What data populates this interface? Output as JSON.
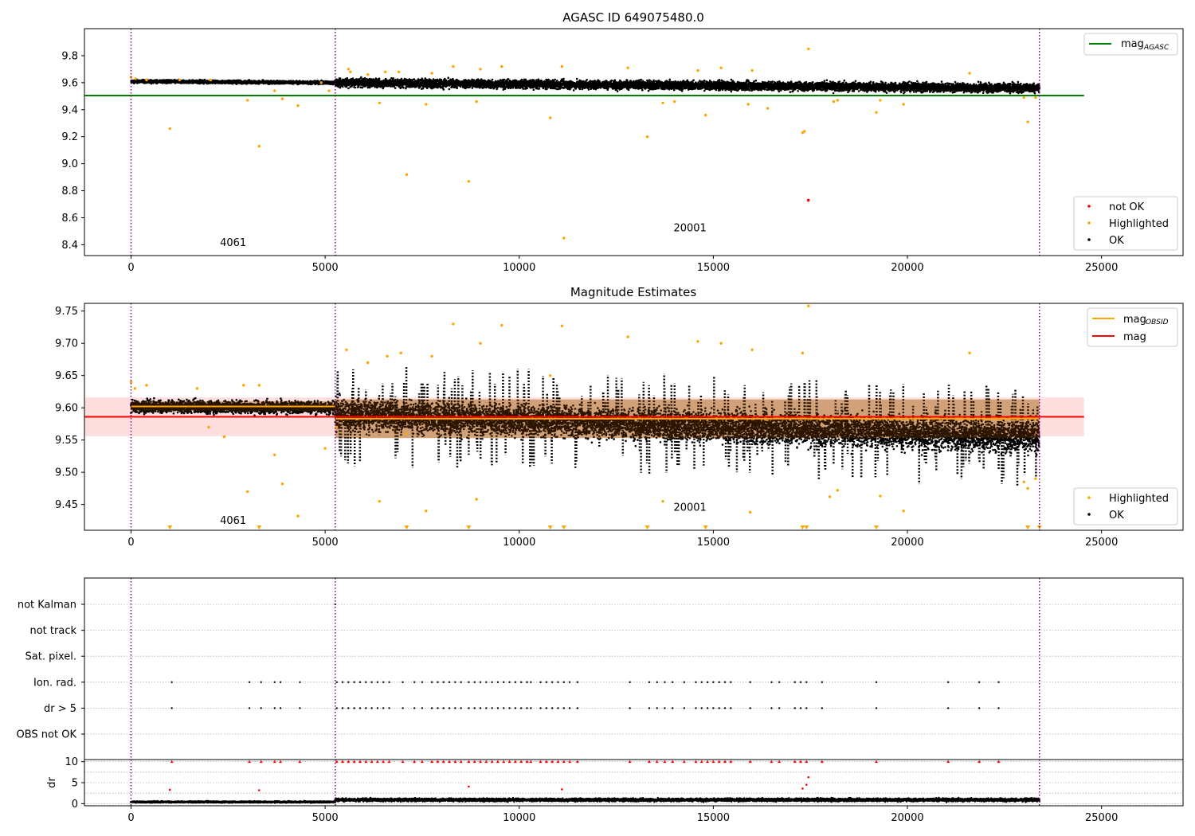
{
  "figure": {
    "background": "#ffffff"
  },
  "colors": {
    "ok": "#000000",
    "highlighted": "#ffa500",
    "not_ok": "#ff0000",
    "mag_agasc_line": "#008000",
    "mag_obsid_line": "#ffa500",
    "mag_line": "#ff0000",
    "obs_boundary": "#800080",
    "obsid_band": "#ffd8b0",
    "mag_band": "#ffd0d0",
    "flag_grid": "#b0b0b0"
  },
  "chart_data": [
    {
      "id": "agasc_panel",
      "type": "scatter",
      "title": "AGASC ID 649075480.0",
      "xlim": [
        -1200,
        27100
      ],
      "ylim": [
        8.32,
        10.0
      ],
      "xticks": [
        0,
        5000,
        10000,
        15000,
        20000,
        25000
      ],
      "yticks": [
        8.4,
        8.6,
        8.8,
        9.0,
        9.2,
        9.4,
        9.6,
        9.8
      ],
      "ytick_labels": [
        "8.4",
        "8.6",
        "8.8",
        "9.0",
        "9.2",
        "9.4",
        "9.6",
        "9.8"
      ],
      "legend_line": {
        "label": "mag",
        "subscript": "AGASC",
        "placement": "upper right"
      },
      "legend_points": {
        "placement": "lower right",
        "entries": [
          "not OK",
          "Highlighted",
          "OK"
        ]
      },
      "mag_agasc": {
        "value": 9.505,
        "x_range": [
          -1200,
          24550
        ]
      },
      "obs_boundaries": [
        0,
        5260,
        23400
      ],
      "obs_labels": [
        {
          "text": "4061",
          "x": 2630,
          "y": 8.39
        },
        {
          "text": "20001",
          "x": 14400,
          "y": 8.5
        }
      ],
      "ok_band": {
        "segments": [
          {
            "x_start": 0,
            "x_end": 5260,
            "center_start": 9.61,
            "center_end": 9.6,
            "spread": 0.022
          },
          {
            "x_start": 5260,
            "x_end": 23400,
            "center_start": 9.6,
            "center_end": 9.56,
            "spread": 0.062
          }
        ]
      },
      "highlighted_points": [
        [
          0,
          9.64
        ],
        [
          120,
          9.63
        ],
        [
          400,
          9.62
        ],
        [
          1000,
          9.26
        ],
        [
          1250,
          9.62
        ],
        [
          2050,
          9.62
        ],
        [
          3000,
          9.47
        ],
        [
          3300,
          9.13
        ],
        [
          3700,
          9.54
        ],
        [
          3900,
          9.48
        ],
        [
          4300,
          9.43
        ],
        [
          4900,
          9.6
        ],
        [
          5100,
          9.54
        ],
        [
          5600,
          9.7
        ],
        [
          5650,
          9.68
        ],
        [
          6100,
          9.66
        ],
        [
          6400,
          9.45
        ],
        [
          6550,
          9.68
        ],
        [
          6900,
          9.68
        ],
        [
          7100,
          8.92
        ],
        [
          7600,
          9.44
        ],
        [
          7750,
          9.67
        ],
        [
          8300,
          9.72
        ],
        [
          8700,
          8.87
        ],
        [
          8900,
          9.46
        ],
        [
          9000,
          9.7
        ],
        [
          9550,
          9.72
        ],
        [
          10800,
          9.34
        ],
        [
          11100,
          9.72
        ],
        [
          12800,
          9.71
        ],
        [
          13300,
          9.2
        ],
        [
          13700,
          9.45
        ],
        [
          14000,
          9.46
        ],
        [
          14600,
          9.69
        ],
        [
          14800,
          9.36
        ],
        [
          15200,
          9.71
        ],
        [
          15900,
          9.44
        ],
        [
          16000,
          9.69
        ],
        [
          16400,
          9.41
        ],
        [
          17300,
          9.23
        ],
        [
          17350,
          9.24
        ],
        [
          17450,
          9.85
        ],
        [
          18100,
          9.46
        ],
        [
          18200,
          9.47
        ],
        [
          19200,
          9.38
        ],
        [
          19300,
          9.47
        ],
        [
          19900,
          9.44
        ],
        [
          21600,
          9.67
        ],
        [
          23000,
          9.49
        ],
        [
          23100,
          9.31
        ],
        [
          23300,
          9.49
        ],
        [
          11150,
          8.45
        ]
      ],
      "not_ok_points": [
        [
          17450,
          8.73
        ]
      ]
    },
    {
      "id": "magnitude_panel",
      "type": "scatter",
      "title": "Magnitude Estimates",
      "xlim": [
        -1200,
        27100
      ],
      "ylim": [
        9.41,
        9.762
      ],
      "xticks": [
        0,
        5000,
        10000,
        15000,
        20000,
        25000
      ],
      "yticks": [
        9.45,
        9.5,
        9.55,
        9.6,
        9.65,
        9.7,
        9.75
      ],
      "ytick_labels": [
        "9.45",
        "9.50",
        "9.55",
        "9.60",
        "9.65",
        "9.70",
        "9.75"
      ],
      "legend_lines": {
        "placement": "upper right",
        "entries": [
          {
            "label": "mag",
            "subscript": "OBSID",
            "color": "#ffa500"
          },
          {
            "label": "mag",
            "subscript": "",
            "color": "#ff0000"
          }
        ]
      },
      "legend_points": {
        "placement": "lower right",
        "entries": [
          "Highlighted",
          "OK"
        ]
      },
      "mag": {
        "value": 9.586,
        "band": [
          9.556,
          9.616
        ],
        "x_range": [
          -1200,
          24550
        ]
      },
      "mag_obsid": [
        {
          "x_start": 0,
          "x_end": 5260,
          "value": 9.602,
          "band": [
            9.595,
            9.61
          ]
        },
        {
          "x_start": 5260,
          "x_end": 23400,
          "value": 9.583,
          "band": [
            9.553,
            9.613
          ]
        }
      ],
      "obs_boundaries": [
        0,
        5260,
        23400
      ],
      "obs_labels": [
        {
          "text": "4061",
          "x": 2630,
          "y": 9.42
        },
        {
          "text": "20001",
          "x": 14400,
          "y": 9.44
        }
      ],
      "ok_band": {
        "segments": [
          {
            "x_start": 0,
            "x_end": 5260,
            "center_start": 9.602,
            "center_end": 9.6,
            "spread": 0.018
          },
          {
            "x_start": 5260,
            "x_end": 23400,
            "center_start": 9.59,
            "center_end": 9.555,
            "spread": 0.045
          }
        ]
      },
      "highlighted_points": [
        [
          0,
          9.64
        ],
        [
          100,
          9.63
        ],
        [
          400,
          9.635
        ],
        [
          1700,
          9.63
        ],
        [
          2000,
          9.57
        ],
        [
          2400,
          9.555
        ],
        [
          2900,
          9.635
        ],
        [
          3000,
          9.47
        ],
        [
          3300,
          9.635
        ],
        [
          3700,
          9.527
        ],
        [
          3900,
          9.482
        ],
        [
          4300,
          9.432
        ],
        [
          5000,
          9.537
        ],
        [
          5300,
          9.57
        ],
        [
          5550,
          9.69
        ],
        [
          6100,
          9.67
        ],
        [
          6400,
          9.455
        ],
        [
          6600,
          9.68
        ],
        [
          6950,
          9.685
        ],
        [
          7100,
          9.56
        ],
        [
          7600,
          9.44
        ],
        [
          7750,
          9.68
        ],
        [
          8300,
          9.73
        ],
        [
          8900,
          9.458
        ],
        [
          9000,
          9.7
        ],
        [
          9550,
          9.728
        ],
        [
          10800,
          9.65
        ],
        [
          11100,
          9.727
        ],
        [
          12800,
          9.71
        ],
        [
          13700,
          9.455
        ],
        [
          14600,
          9.703
        ],
        [
          15200,
          9.7
        ],
        [
          15950,
          9.438
        ],
        [
          16000,
          9.69
        ],
        [
          17300,
          9.685
        ],
        [
          17450,
          9.758
        ],
        [
          18000,
          9.462
        ],
        [
          18200,
          9.472
        ],
        [
          19300,
          9.463
        ],
        [
          19900,
          9.44
        ],
        [
          21600,
          9.685
        ],
        [
          23000,
          9.485
        ],
        [
          23100,
          9.475
        ],
        [
          23300,
          9.49
        ]
      ],
      "below_axis_markers": [
        1000,
        3300,
        7100,
        8700,
        10800,
        11150,
        13300,
        14800,
        17300,
        17400,
        19200,
        23100,
        23400
      ]
    },
    {
      "id": "flags_panel",
      "type": "scatter",
      "xlim": [
        -1200,
        27100
      ],
      "categories": [
        "not Kalman",
        "not track",
        "Sat. pixel.",
        "Ion. rad.",
        "dr > 5",
        "OBS not OK"
      ],
      "obs_boundaries": [
        0,
        5260,
        23400
      ],
      "flag_points": {
        "not Kalman": [
          5260
        ],
        "not track": [],
        "Sat. pixel.": [],
        "Ion. rad.": [
          1050,
          3050,
          3350,
          3700,
          3850,
          4350,
          5300,
          5450,
          5600,
          5750,
          5900,
          6050,
          6200,
          6350,
          6500,
          6650,
          7000,
          7300,
          7500,
          7750,
          7900,
          8050,
          8200,
          8350,
          8500,
          8700,
          8850,
          9000,
          9150,
          9300,
          9450,
          9600,
          9750,
          9900,
          10050,
          10200,
          10300,
          10550,
          10700,
          10850,
          11000,
          11150,
          11300,
          11500,
          12850,
          13350,
          13550,
          13750,
          13950,
          14250,
          14550,
          14700,
          14850,
          15000,
          15150,
          15300,
          15450,
          15950,
          16500,
          16700,
          17100,
          17250,
          17400,
          17800,
          19200,
          21050,
          21850,
          22350
        ],
        "dr > 5": [
          1050,
          3050,
          3350,
          3700,
          3850,
          4350,
          5300,
          5450,
          5600,
          5750,
          5900,
          6050,
          6200,
          6350,
          6500,
          6650,
          7000,
          7300,
          7500,
          7750,
          7900,
          8050,
          8200,
          8350,
          8500,
          8700,
          8850,
          9000,
          9150,
          9300,
          9450,
          9600,
          9750,
          9900,
          10050,
          10200,
          10300,
          10550,
          10700,
          10850,
          11000,
          11150,
          11300,
          11500,
          12850,
          13350,
          13550,
          13750,
          13950,
          14250,
          14550,
          14700,
          14850,
          15000,
          15150,
          15300,
          15450,
          15950,
          16500,
          16700,
          17100,
          17250,
          17400,
          17800,
          19200,
          21050,
          21850,
          22350
        ],
        "OBS not OK": []
      }
    },
    {
      "id": "dr_panel",
      "type": "scatter",
      "ylabel": "dr",
      "xlim": [
        -1200,
        27100
      ],
      "ylim": [
        -0.5,
        10.5
      ],
      "xticks": [
        0,
        5000,
        10000,
        15000,
        20000,
        25000
      ],
      "yticks": [
        0,
        5,
        10
      ],
      "ytick_labels": [
        "0",
        "5",
        "10"
      ],
      "obs_boundaries": [
        0,
        5260,
        23400
      ],
      "dr_band": {
        "segments": [
          {
            "x_start": 0,
            "x_end": 5260,
            "center_start": 0.4,
            "center_end": 0.4,
            "spread": 0.35
          },
          {
            "x_start": 5260,
            "x_end": 23400,
            "center_start": 0.9,
            "center_end": 0.9,
            "spread": 0.7
          }
        ]
      },
      "clipped_red_points": [
        1050,
        3050,
        3350,
        3700,
        3850,
        4350,
        5300,
        5450,
        5600,
        5750,
        5900,
        6050,
        6200,
        6350,
        6500,
        6650,
        7000,
        7300,
        7500,
        7750,
        7900,
        8050,
        8200,
        8350,
        8500,
        8700,
        8850,
        9000,
        9150,
        9300,
        9450,
        9600,
        9750,
        9900,
        10050,
        10200,
        10300,
        10550,
        10700,
        10850,
        11000,
        11150,
        11300,
        11500,
        12850,
        13350,
        13550,
        13750,
        13950,
        14250,
        14550,
        14700,
        14850,
        15000,
        15150,
        15300,
        15450,
        15950,
        16500,
        16700,
        17100,
        17250,
        17400,
        17800,
        19200,
        21050,
        21850,
        22350
      ],
      "red_points": [
        [
          1000,
          3.3
        ],
        [
          3300,
          3.2
        ],
        [
          8700,
          4.1
        ],
        [
          11100,
          3.4
        ],
        [
          17300,
          3.6
        ],
        [
          17450,
          6.3
        ],
        [
          17400,
          4.5
        ]
      ]
    }
  ]
}
